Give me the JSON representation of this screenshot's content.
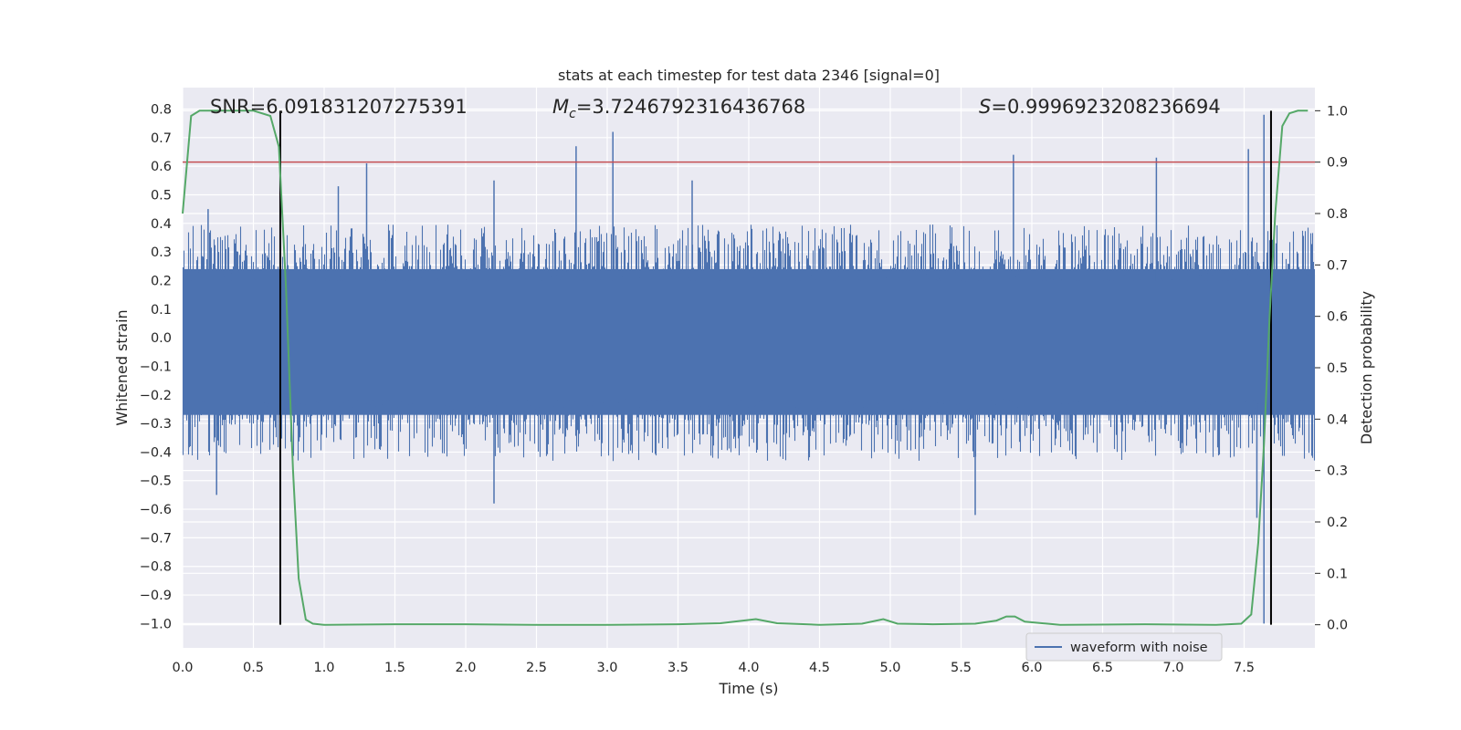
{
  "chart_data": {
    "type": "line",
    "title": "stats at each timestep for test data 2346 [signal=0]",
    "xlabel": "Time (s)",
    "ylabel": "Whitened strain",
    "y2label": "Detection probability",
    "xlim": [
      0,
      8
    ],
    "ylim": [
      -1.085,
      0.875
    ],
    "y2lim": [
      -0.045,
      1.045
    ],
    "xticks": [
      "0.0",
      "0.5",
      "1.0",
      "1.5",
      "2.0",
      "2.5",
      "3.0",
      "3.5",
      "4.0",
      "4.5",
      "5.0",
      "5.5",
      "6.0",
      "6.5",
      "7.0",
      "7.5"
    ],
    "yticks": [
      "0.8",
      "0.7",
      "0.6",
      "0.5",
      "0.4",
      "0.3",
      "0.2",
      "0.1",
      "0.0",
      "−0.1",
      "−0.2",
      "−0.3",
      "−0.4",
      "−0.5",
      "−0.6",
      "−0.7",
      "−0.8",
      "−0.9",
      "−1.0"
    ],
    "y2ticks": [
      "1.0",
      "0.9",
      "0.8",
      "0.7",
      "0.6",
      "0.5",
      "0.4",
      "0.3",
      "0.2",
      "0.1",
      "0.0"
    ],
    "grid": true,
    "legend": {
      "position": "lower right",
      "entries": [
        "waveform with noise"
      ]
    },
    "annotations": {
      "snr": "SNR=6.091831207275391",
      "mc_symbol": "M",
      "mc_sub": "c",
      "mc_value": "=3.7246792316436768",
      "s_symbol": "S",
      "s_value": "=0.9996923208236694"
    },
    "threshold": {
      "axis": "right",
      "value": 0.9,
      "color": "#c44e52"
    },
    "vertical_markers": [
      0.69,
      7.69
    ],
    "waveform": {
      "name": "waveform with noise",
      "color": "#4c72b0",
      "typical_envelope": [
        -0.36,
        0.36
      ],
      "peaks": [
        {
          "x": 0.18,
          "y": 0.45
        },
        {
          "x": 0.24,
          "y": -0.55
        },
        {
          "x": 1.3,
          "y": 0.61
        },
        {
          "x": 1.1,
          "y": 0.53
        },
        {
          "x": 2.2,
          "y": 0.55
        },
        {
          "x": 2.2,
          "y": -0.58
        },
        {
          "x": 2.78,
          "y": 0.67
        },
        {
          "x": 3.04,
          "y": 0.72
        },
        {
          "x": 3.6,
          "y": 0.55
        },
        {
          "x": 5.6,
          "y": -0.62
        },
        {
          "x": 5.87,
          "y": 0.64
        },
        {
          "x": 6.88,
          "y": 0.63
        },
        {
          "x": 7.53,
          "y": 0.66
        },
        {
          "x": 7.64,
          "y": 0.78
        },
        {
          "x": 7.59,
          "y": -0.63
        },
        {
          "x": 7.64,
          "y": -1.0
        }
      ]
    },
    "detection_probability": {
      "color": "#55a868",
      "x": [
        0.0,
        0.06,
        0.12,
        0.3,
        0.5,
        0.62,
        0.68,
        0.73,
        0.78,
        0.82,
        0.87,
        0.92,
        1.0,
        1.5,
        2.0,
        2.5,
        3.0,
        3.5,
        3.8,
        4.05,
        4.2,
        4.5,
        4.8,
        4.95,
        5.05,
        5.3,
        5.6,
        5.75,
        5.82,
        5.88,
        5.95,
        6.2,
        6.8,
        7.3,
        7.48,
        7.55,
        7.6,
        7.64,
        7.68,
        7.72,
        7.77,
        7.82,
        7.88,
        7.95
      ],
      "y": [
        0.8,
        0.99,
        1.0,
        1.0,
        1.0,
        0.99,
        0.93,
        0.66,
        0.3,
        0.09,
        0.01,
        0.002,
        0.0,
        0.001,
        0.001,
        0.0,
        0.0,
        0.001,
        0.003,
        0.011,
        0.003,
        0.0,
        0.002,
        0.011,
        0.002,
        0.001,
        0.002,
        0.008,
        0.016,
        0.016,
        0.006,
        0.0,
        0.001,
        0.0,
        0.002,
        0.02,
        0.16,
        0.35,
        0.6,
        0.8,
        0.97,
        0.995,
        1.0,
        1.0
      ]
    }
  }
}
